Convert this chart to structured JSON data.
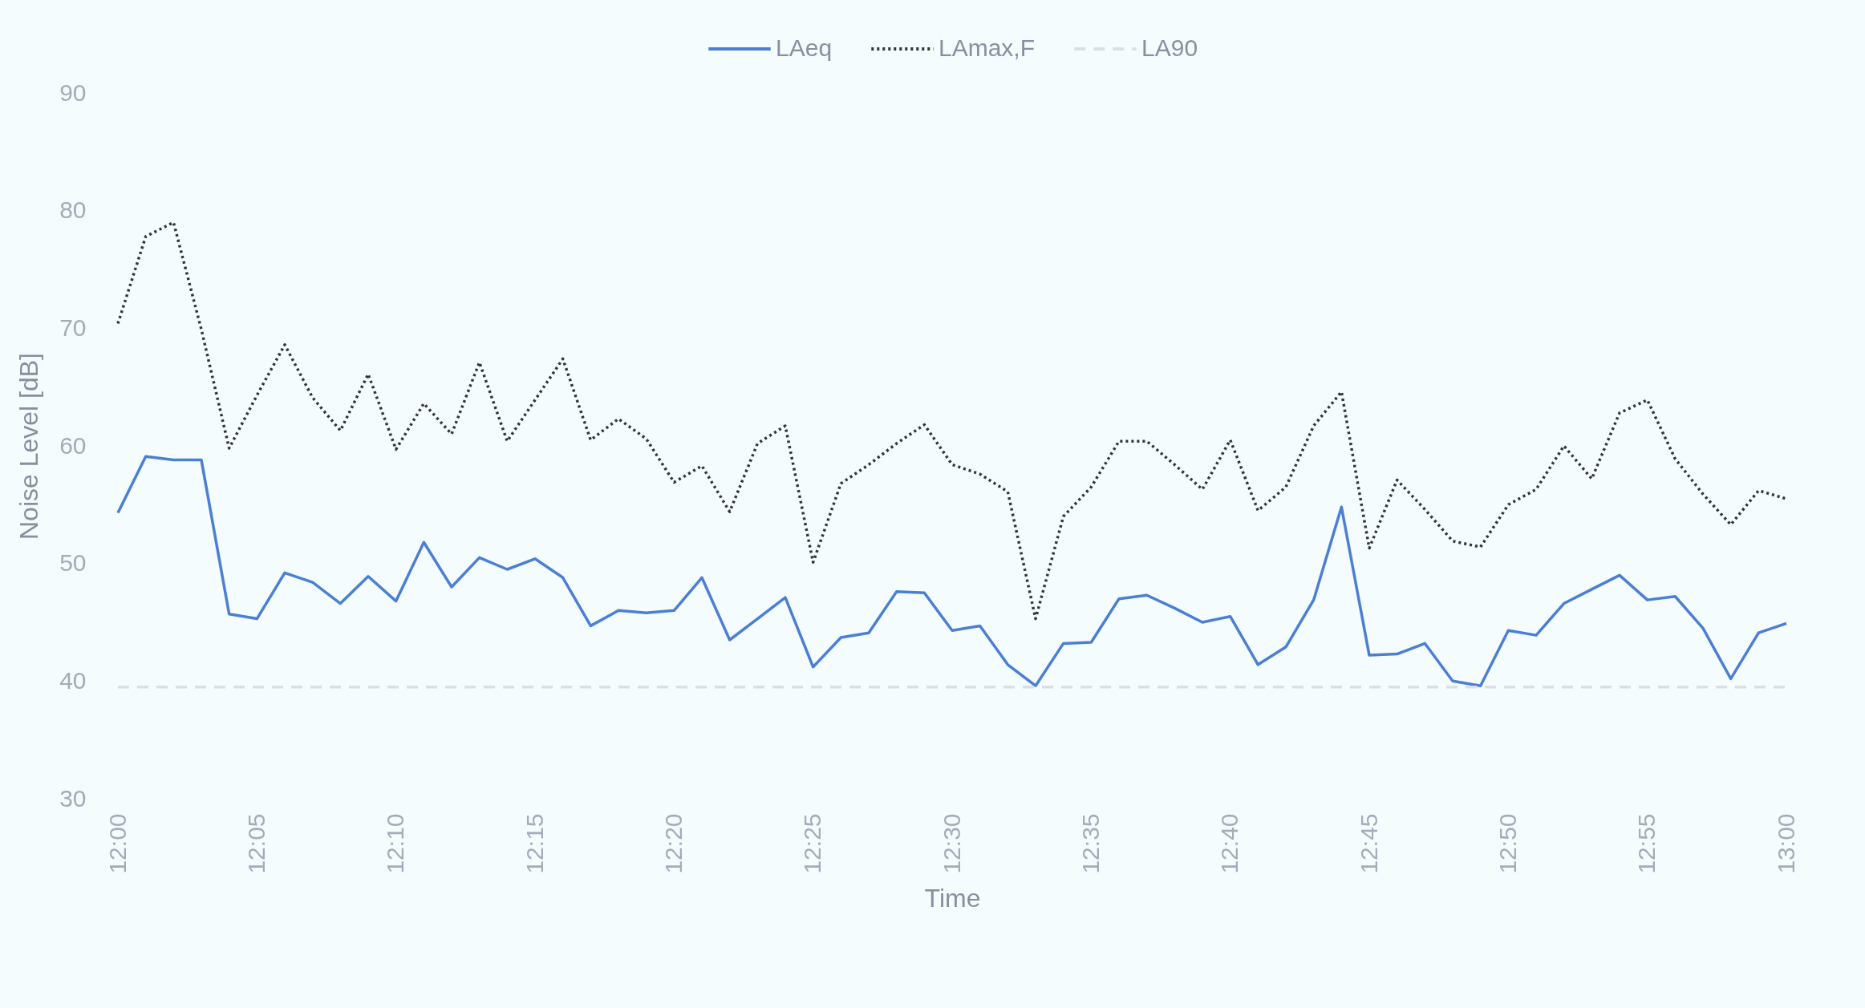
{
  "chart_data": {
    "type": "line",
    "xlabel": "Time",
    "ylabel": "Noise Level [dB]",
    "categories": [
      "12:00",
      null,
      null,
      null,
      null,
      "12:05",
      null,
      null,
      null,
      null,
      "12:10",
      null,
      null,
      null,
      null,
      "12:15",
      null,
      null,
      null,
      null,
      "12:20",
      null,
      null,
      null,
      null,
      "12:25",
      null,
      null,
      null,
      null,
      "12:30",
      null,
      null,
      null,
      null,
      "12:35",
      null,
      null,
      null,
      null,
      "12:40",
      null,
      null,
      null,
      null,
      "12:45",
      null,
      null,
      null,
      null,
      "12:50",
      null,
      null,
      null,
      null,
      "12:55",
      null,
      null,
      null,
      null,
      "13:00"
    ],
    "ylim": [
      30,
      90
    ],
    "yticks": [
      30,
      40,
      50,
      60,
      70,
      80,
      90
    ],
    "legend": "top",
    "grid": false,
    "series": [
      {
        "name": "LAeq",
        "color": "#4a7fd4",
        "line_style": "solid",
        "values": [
          54.3,
          59.1,
          58.8,
          58.8,
          45.7,
          45.3,
          49.2,
          48.4,
          46.6,
          48.9,
          46.8,
          51.8,
          48.0,
          50.5,
          49.5,
          50.4,
          48.8,
          44.7,
          46.0,
          45.8,
          46.0,
          48.8,
          43.5,
          45.3,
          47.1,
          41.2,
          43.7,
          44.1,
          47.6,
          47.5,
          44.3,
          44.7,
          41.4,
          39.6,
          43.2,
          43.3,
          47.0,
          47.3,
          46.2,
          45.0,
          45.5,
          41.4,
          42.9,
          46.9,
          54.8,
          42.2,
          42.3,
          43.2,
          40.0,
          39.6,
          44.3,
          43.9,
          46.6,
          47.8,
          49.0,
          46.9,
          47.2,
          44.5,
          40.2,
          44.1,
          44.9
        ]
      },
      {
        "name": "LAmax,F",
        "color": "#333333",
        "line_style": "dotted",
        "values": [
          70.4,
          77.8,
          79.0,
          69.9,
          59.8,
          64.3,
          68.6,
          64.1,
          61.3,
          66.1,
          59.7,
          63.6,
          61.0,
          67.1,
          60.4,
          63.9,
          67.4,
          60.5,
          62.3,
          60.6,
          56.9,
          58.3,
          54.4,
          60.2,
          61.7,
          50.1,
          56.8,
          58.4,
          60.2,
          61.8,
          58.4,
          57.6,
          56.1,
          45.3,
          54.0,
          56.5,
          60.4,
          60.4,
          58.4,
          56.3,
          60.5,
          54.5,
          56.5,
          61.7,
          64.6,
          51.3,
          57.1,
          54.6,
          51.9,
          51.4,
          55.0,
          56.3,
          60.0,
          57.2,
          62.8,
          63.9,
          58.9,
          55.9,
          53.3,
          56.2,
          55.5
        ]
      },
      {
        "name": "LA90",
        "color": "#dcdfe2",
        "line_style": "dashed",
        "values": [
          39.5,
          39.5,
          39.5,
          39.5,
          39.5,
          39.5,
          39.5,
          39.5,
          39.5,
          39.5,
          39.5,
          39.5,
          39.5,
          39.5,
          39.5,
          39.5,
          39.5,
          39.5,
          39.5,
          39.5,
          39.5,
          39.5,
          39.5,
          39.5,
          39.5,
          39.5,
          39.5,
          39.5,
          39.5,
          39.5,
          39.5,
          39.5,
          39.5,
          39.5,
          39.5,
          39.5,
          39.5,
          39.5,
          39.5,
          39.5,
          39.5,
          39.5,
          39.5,
          39.5,
          39.5,
          39.5,
          39.5,
          39.5,
          39.5,
          39.5,
          39.5,
          39.5,
          39.5,
          39.5,
          39.5,
          39.5,
          39.5,
          39.5,
          39.5,
          39.5,
          39.5
        ]
      }
    ]
  }
}
